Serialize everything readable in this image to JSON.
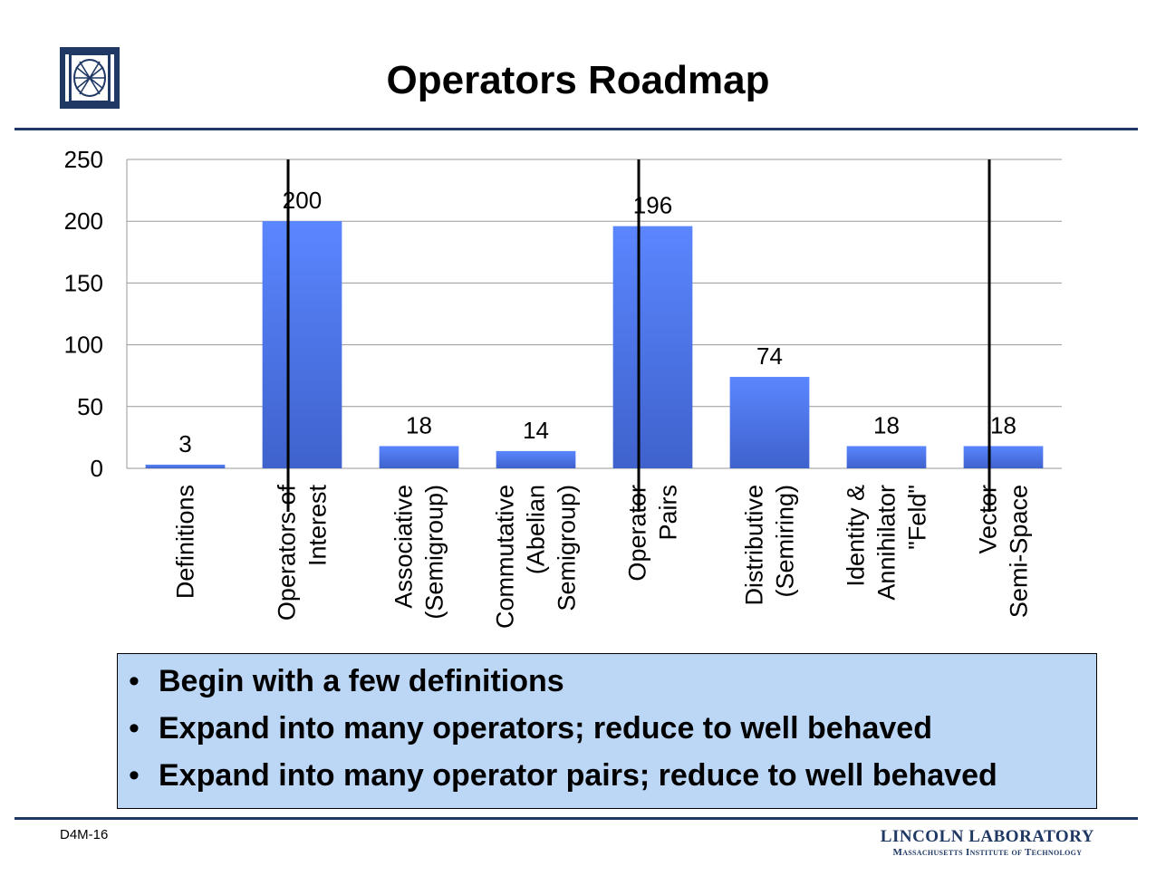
{
  "slide": {
    "title": "Operators Roadmap",
    "slide_id": "D4M-16",
    "lab_name": "LINCOLN LABORATORY",
    "lab_subtitle": "Massachusetts Institute of Technology",
    "accent_color": "#1f3864",
    "logo_icon": "mit-ll-logo-icon"
  },
  "chart_data": {
    "type": "bar",
    "categories": [
      [
        "Definitions"
      ],
      [
        "Operators of",
        "Interest"
      ],
      [
        "Associative",
        "(Semigroup)"
      ],
      [
        "Commutative",
        "(Abelian",
        "Semigroup)"
      ],
      [
        "Operator",
        "Pairs"
      ],
      [
        "Distributive",
        "(Semiring)"
      ],
      [
        "Identity &",
        "Annihilator",
        "\"Feld\""
      ],
      [
        "Vector",
        "Semi-Space"
      ]
    ],
    "values": [
      3,
      200,
      18,
      14,
      196,
      74,
      18,
      18
    ],
    "data_labels": [
      "3",
      "200",
      "18",
      "14",
      "196",
      "74",
      "18",
      "18"
    ],
    "ylim": [
      0,
      250
    ],
    "yticks": [
      0,
      50,
      100,
      150,
      200,
      250
    ],
    "grid": true,
    "bar_color": "#5580f0",
    "group_separators_after": [
      1,
      4,
      7
    ]
  },
  "bullets": [
    "Begin with a few definitions",
    "Expand into many operators; reduce to well behaved",
    "Expand into many operator pairs; reduce to well behaved"
  ]
}
